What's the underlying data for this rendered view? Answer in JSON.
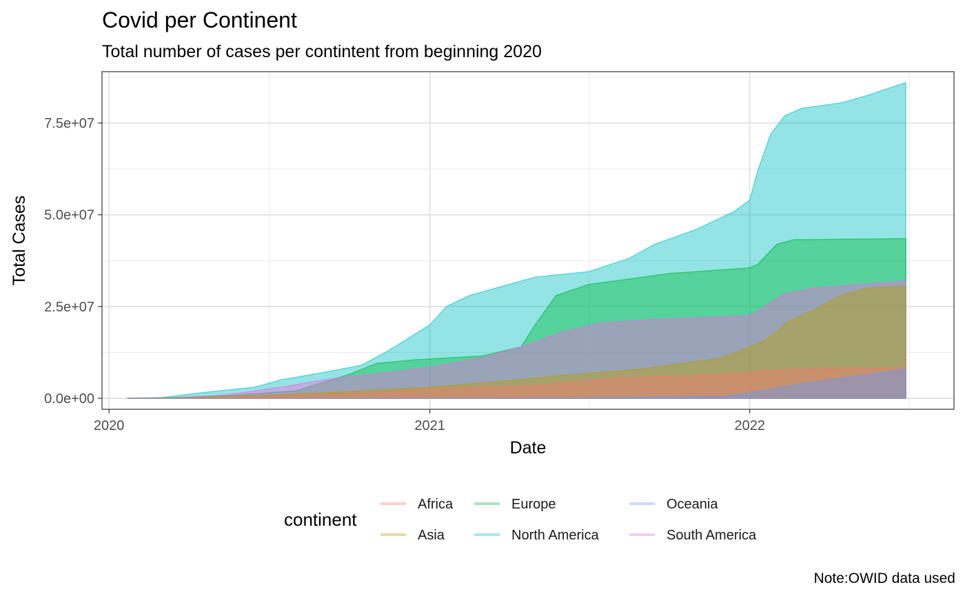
{
  "chart_data": {
    "type": "area",
    "title": "Covid per Continent",
    "subtitle": "Total number of cases per contintent from beginning 2020",
    "xlabel": "Date",
    "ylabel": "Total Cases",
    "caption": "Note:OWID data used",
    "x_range": [
      "2019-12-24",
      "2022-08-22"
    ],
    "y_range": [
      -3000000,
      89000000
    ],
    "x_ticks": [
      {
        "value": "2020-01-01",
        "label": "2020"
      },
      {
        "value": "2021-01-01",
        "label": "2021"
      },
      {
        "value": "2022-01-01",
        "label": "2022"
      }
    ],
    "y_ticks": [
      {
        "value": 0,
        "label": "0.0e+00"
      },
      {
        "value": 25000000,
        "label": "2.5e+07"
      },
      {
        "value": 50000000,
        "label": "5.0e+07"
      },
      {
        "value": 75000000,
        "label": "7.5e+07"
      }
    ],
    "grid": true,
    "legend": {
      "title": "continent",
      "position": "bottom"
    },
    "series": [
      {
        "name": "North America",
        "color": "#00BFC4",
        "points": [
          [
            "2020-01-22",
            0
          ],
          [
            "2020-03-01",
            200000
          ],
          [
            "2020-04-15",
            1500000
          ],
          [
            "2020-06-15",
            3000000
          ],
          [
            "2020-07-15",
            5000000
          ],
          [
            "2020-09-01",
            7000000
          ],
          [
            "2020-10-15",
            9000000
          ],
          [
            "2020-11-15",
            13000000
          ],
          [
            "2021-01-01",
            20000000
          ],
          [
            "2021-01-20",
            25000000
          ],
          [
            "2021-02-15",
            28000000
          ],
          [
            "2021-04-01",
            31000000
          ],
          [
            "2021-05-01",
            33000000
          ],
          [
            "2021-07-01",
            34500000
          ],
          [
            "2021-08-15",
            38000000
          ],
          [
            "2021-09-15",
            42000000
          ],
          [
            "2021-11-01",
            46000000
          ],
          [
            "2021-12-15",
            51000000
          ],
          [
            "2022-01-01",
            54000000
          ],
          [
            "2022-01-10",
            62000000
          ],
          [
            "2022-01-25",
            72000000
          ],
          [
            "2022-02-10",
            77000000
          ],
          [
            "2022-03-01",
            79000000
          ],
          [
            "2022-04-15",
            80500000
          ],
          [
            "2022-05-15",
            82500000
          ],
          [
            "2022-06-15",
            85000000
          ],
          [
            "2022-06-28",
            86000000
          ]
        ]
      },
      {
        "name": "Europe",
        "color": "#00BA38",
        "points": [
          [
            "2020-01-22",
            0
          ],
          [
            "2020-03-01",
            100000
          ],
          [
            "2020-05-01",
            500000
          ],
          [
            "2020-08-01",
            2000000
          ],
          [
            "2020-10-01",
            6500000
          ],
          [
            "2020-11-01",
            9500000
          ],
          [
            "2020-12-15",
            10500000
          ],
          [
            "2021-03-01",
            11500000
          ],
          [
            "2021-04-15",
            14000000
          ],
          [
            "2021-05-01",
            20000000
          ],
          [
            "2021-05-25",
            28000000
          ],
          [
            "2021-07-01",
            31000000
          ],
          [
            "2021-10-01",
            34000000
          ],
          [
            "2021-12-31",
            35500000
          ],
          [
            "2022-01-10",
            36500000
          ],
          [
            "2022-02-01",
            42000000
          ],
          [
            "2022-02-20",
            43200000
          ],
          [
            "2022-06-28",
            43500000
          ]
        ]
      },
      {
        "name": "South America",
        "color": "#F564E3",
        "points": [
          [
            "2020-01-22",
            0
          ],
          [
            "2020-03-15",
            100000
          ],
          [
            "2020-05-15",
            1000000
          ],
          [
            "2020-07-15",
            3000000
          ],
          [
            "2020-09-15",
            5500000
          ],
          [
            "2020-11-15",
            7000000
          ],
          [
            "2021-01-01",
            8500000
          ],
          [
            "2021-03-01",
            11000000
          ],
          [
            "2021-04-15",
            14000000
          ],
          [
            "2021-06-01",
            18000000
          ],
          [
            "2021-07-15",
            20500000
          ],
          [
            "2021-09-15",
            21500000
          ],
          [
            "2021-12-31",
            22500000
          ],
          [
            "2022-01-15",
            24500000
          ],
          [
            "2022-02-10",
            28500000
          ],
          [
            "2022-03-15",
            30000000
          ],
          [
            "2022-06-28",
            32000000
          ]
        ]
      },
      {
        "name": "Asia",
        "color": "#B79F00",
        "points": [
          [
            "2020-01-22",
            0
          ],
          [
            "2020-04-01",
            200000
          ],
          [
            "2020-07-01",
            800000
          ],
          [
            "2020-10-01",
            1800000
          ],
          [
            "2021-01-01",
            3000000
          ],
          [
            "2021-04-01",
            4800000
          ],
          [
            "2021-06-01",
            6200000
          ],
          [
            "2021-09-01",
            8000000
          ],
          [
            "2021-12-01",
            11000000
          ],
          [
            "2022-01-01",
            14000000
          ],
          [
            "2022-01-20",
            16000000
          ],
          [
            "2022-02-15",
            21000000
          ],
          [
            "2022-03-15",
            24000000
          ],
          [
            "2022-04-15",
            28000000
          ],
          [
            "2022-05-15",
            30000000
          ],
          [
            "2022-06-28",
            30500000
          ]
        ]
      },
      {
        "name": "Africa",
        "color": "#F8766D",
        "points": [
          [
            "2020-01-22",
            0
          ],
          [
            "2020-05-01",
            100000
          ],
          [
            "2020-08-01",
            800000
          ],
          [
            "2020-11-01",
            1500000
          ],
          [
            "2021-01-01",
            2500000
          ],
          [
            "2021-05-01",
            3500000
          ],
          [
            "2021-08-01",
            5500000
          ],
          [
            "2021-12-01",
            6500000
          ],
          [
            "2022-01-15",
            7500000
          ],
          [
            "2022-03-01",
            8000000
          ],
          [
            "2022-06-28",
            8300000
          ]
        ]
      },
      {
        "name": "Oceania",
        "color": "#619CFF",
        "points": [
          [
            "2020-01-22",
            0
          ],
          [
            "2021-06-01",
            100000
          ],
          [
            "2021-12-01",
            400000
          ],
          [
            "2022-01-15",
            2000000
          ],
          [
            "2022-03-01",
            4000000
          ],
          [
            "2022-04-15",
            5500000
          ],
          [
            "2022-06-01",
            7000000
          ],
          [
            "2022-06-28",
            8000000
          ]
        ]
      }
    ],
    "legend_order": [
      "Africa",
      "Asia",
      "Europe",
      "North America",
      "Oceania",
      "South America"
    ]
  }
}
